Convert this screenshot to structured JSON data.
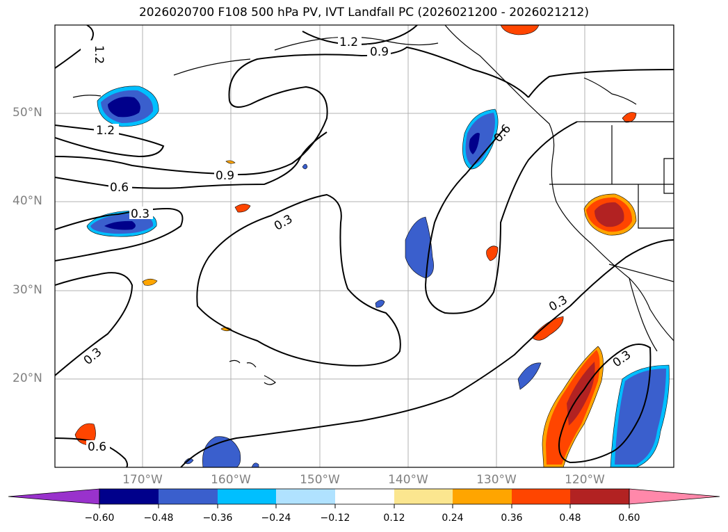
{
  "title": "2026020700 F108 500 hPa PV, IVT Landfall PC (2026021200 - 2026021212)",
  "lat_labels": [
    "50°N",
    "40°N",
    "30°N",
    "20°N"
  ],
  "lon_labels": [
    "170°W",
    "160°W",
    "150°W",
    "140°W",
    "130°W",
    "120°W"
  ],
  "contour_labels": [
    "1.2",
    "1.2",
    "0.9",
    "1.2",
    "0.9",
    "0.6",
    "0.3",
    "0.3",
    "0.6",
    "0.3",
    "0.3",
    "0.3",
    "0.6"
  ],
  "colorbar": {
    "ticks": [
      "−0.60",
      "−0.48",
      "−0.36",
      "−0.24",
      "−0.12",
      "0.12",
      "0.24",
      "0.36",
      "0.48",
      "0.60"
    ],
    "colors": [
      "#9932cc",
      "#00008b",
      "#3a5fcd",
      "#00bfff",
      "#b0e2ff",
      "#ffffff",
      "#fbe68f",
      "#ffa500",
      "#ff4500",
      "#b22222",
      "#ff88aa"
    ]
  }
}
